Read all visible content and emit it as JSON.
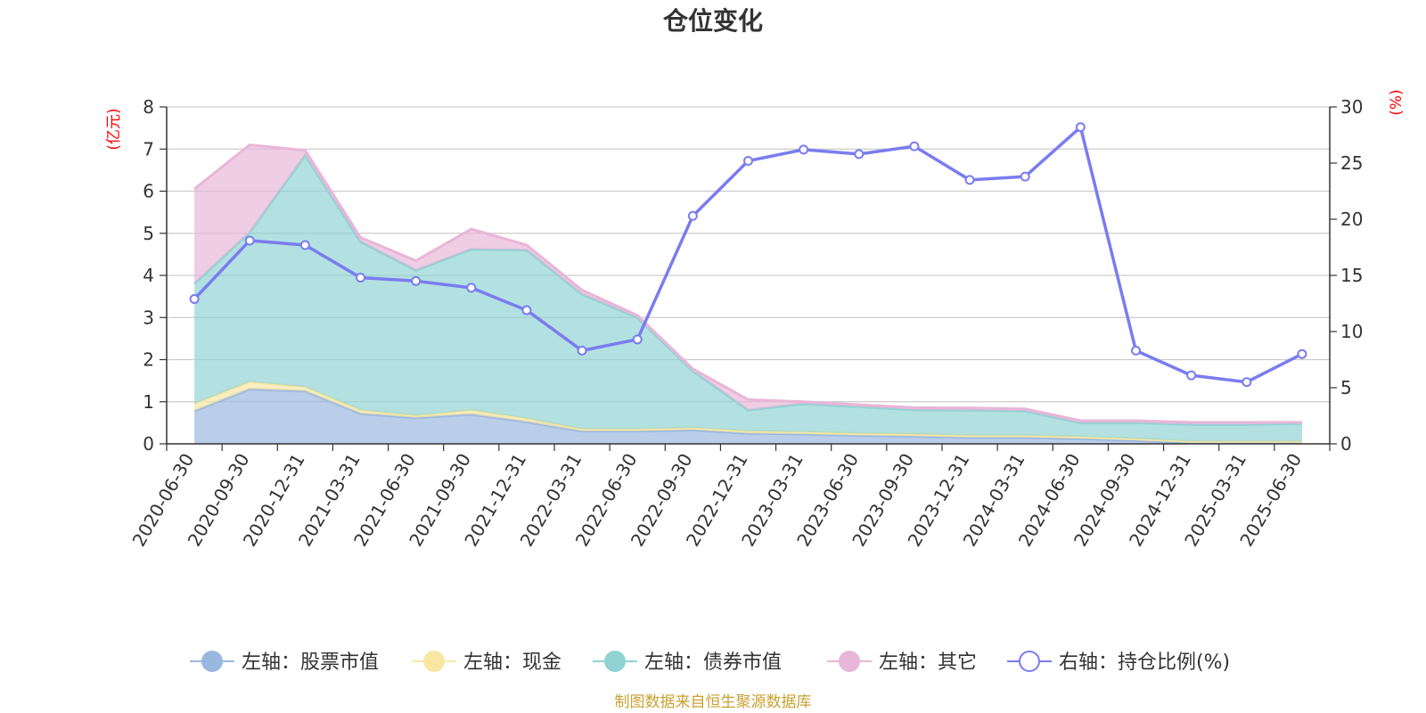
{
  "title": "仓位变化",
  "source_text": "制图数据来自恒生聚源数据库",
  "colors": {
    "stock": "#9ab7e0",
    "cash": "#f7e7a3",
    "bond": "#8fd3d3",
    "other": "#e8b6d8",
    "ratio": "#7a7cf0"
  },
  "chart_data": {
    "type": "area",
    "left_axis_unit": "(亿元)",
    "right_axis_unit": "(%)",
    "ylim_left": [
      0,
      8
    ],
    "ylim_right": [
      0,
      30
    ],
    "yticks_left": [
      "0",
      "1",
      "2",
      "3",
      "4",
      "5",
      "6",
      "7",
      "8"
    ],
    "yticks_right": [
      "0",
      "5",
      "10",
      "15",
      "20",
      "25",
      "30"
    ],
    "grid": true,
    "legend_position": "bottom",
    "x": [
      "2020-06-30",
      "2020-09-30",
      "2020-12-31",
      "2021-03-31",
      "2021-06-30",
      "2021-09-30",
      "2021-12-31",
      "2022-03-31",
      "2022-06-30",
      "2022-09-30",
      "2022-12-31",
      "2023-03-31",
      "2023-06-30",
      "2023-09-30",
      "2023-12-31",
      "2024-03-31",
      "2024-06-30",
      "2024-09-30",
      "2024-12-31",
      "2025-03-31",
      "2025-06-30"
    ],
    "series": [
      {
        "name": "左轴：股票市值",
        "axis": "left",
        "stack": true,
        "key": "stock",
        "values": [
          0.78,
          1.3,
          1.25,
          0.72,
          0.62,
          0.7,
          0.52,
          0.3,
          0.3,
          0.33,
          0.25,
          0.23,
          0.2,
          0.18,
          0.15,
          0.15,
          0.12,
          0.08,
          0.03,
          0.03,
          0.03
        ]
      },
      {
        "name": "左轴：现金",
        "axis": "left",
        "stack": true,
        "key": "cash",
        "values": [
          0.17,
          0.17,
          0.1,
          0.08,
          0.05,
          0.1,
          0.08,
          0.05,
          0.05,
          0.05,
          0.05,
          0.05,
          0.05,
          0.05,
          0.05,
          0.05,
          0.05,
          0.04,
          0.03,
          0.03,
          0.03
        ]
      },
      {
        "name": "左轴：债券市值",
        "axis": "left",
        "stack": true,
        "key": "bond",
        "values": [
          2.85,
          3.55,
          5.5,
          4.0,
          3.45,
          3.82,
          4.0,
          3.2,
          2.65,
          1.35,
          0.5,
          0.67,
          0.63,
          0.58,
          0.6,
          0.58,
          0.33,
          0.38,
          0.4,
          0.4,
          0.42
        ]
      },
      {
        "name": "左轴：其它",
        "axis": "left",
        "stack": true,
        "key": "other",
        "values": [
          2.25,
          2.08,
          0.12,
          0.1,
          0.23,
          0.48,
          0.12,
          0.1,
          0.05,
          0.05,
          0.25,
          0.05,
          0.05,
          0.05,
          0.05,
          0.05,
          0.05,
          0.05,
          0.05,
          0.05,
          0.03
        ]
      },
      {
        "name": "右轴：持仓比例(%)",
        "axis": "right",
        "type": "line",
        "key": "ratio",
        "values": [
          12.9,
          18.1,
          17.7,
          14.8,
          14.5,
          13.9,
          11.9,
          8.3,
          9.3,
          20.3,
          25.2,
          26.2,
          25.8,
          26.5,
          23.5,
          23.8,
          28.2,
          8.3,
          6.1,
          5.5,
          8.0
        ]
      }
    ]
  }
}
